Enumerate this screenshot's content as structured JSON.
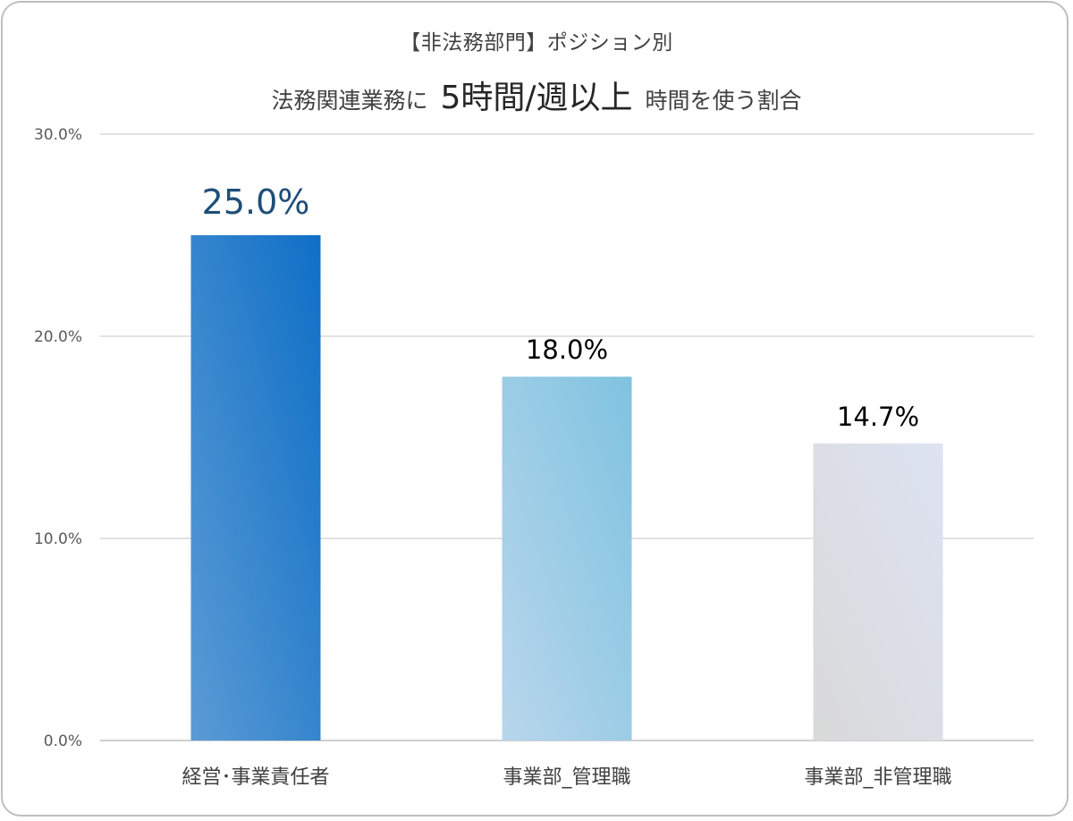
{
  "chart_data": {
    "type": "bar",
    "title_line1": "【非法務部門】ポジション別",
    "title_line2_pre": "法務関連業務に",
    "title_line2_big": "5時間/週以上",
    "title_line2_post": "時間を使う割合",
    "categories": [
      "経営･事業責任者",
      "事業部_管理職",
      "事業部_非管理職"
    ],
    "values": [
      25.0,
      18.0,
      14.7
    ],
    "data_labels": [
      "25.0%",
      "18.0%",
      "14.7%"
    ],
    "ylim": [
      0,
      30
    ],
    "yticks": [
      0,
      10,
      20,
      30
    ],
    "ytick_labels": [
      "0.0%",
      "10.0%",
      "20.0%",
      "30.0%"
    ],
    "grid": true,
    "legend": "none",
    "colors": {
      "bar1": [
        "#5b9bd5",
        "#0f6fc6"
      ],
      "bar2": [
        "#b9d6ec",
        "#7fc3e0"
      ],
      "bar3": [
        "#d9d9d9",
        "#dde3f2"
      ],
      "grid": "#d9d9d9",
      "first_label": "#1f4e79"
    }
  }
}
